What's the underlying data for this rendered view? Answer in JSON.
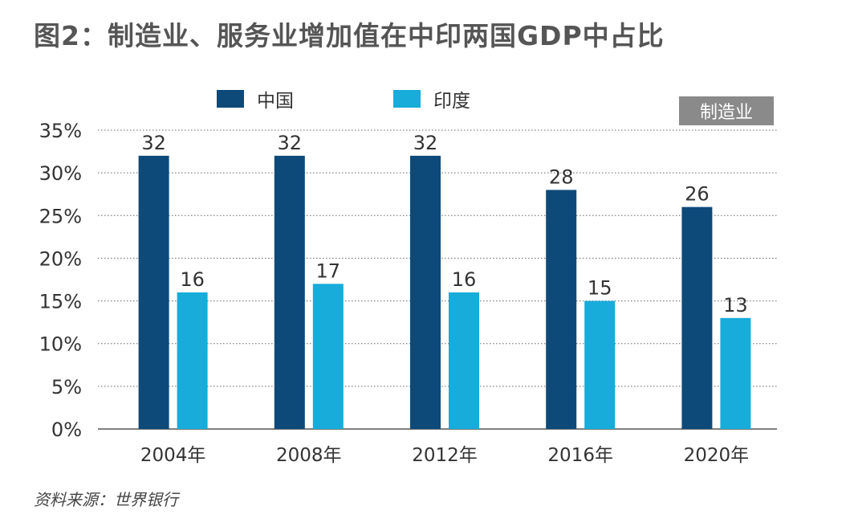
{
  "title": "图2：制造业、服务业增加值在中印两国GDP中占比",
  "badge": "制造业",
  "source": "资料来源：世界银行",
  "colors": {
    "china": "#0d4a7a",
    "india": "#17acd9",
    "grid": "#666666",
    "text": "#333333"
  },
  "chart_data": {
    "type": "bar",
    "categories": [
      "2004年",
      "2008年",
      "2012年",
      "2016年",
      "2020年"
    ],
    "series": [
      {
        "name": "中国",
        "values": [
          32,
          32,
          32,
          28,
          26
        ]
      },
      {
        "name": "印度",
        "values": [
          16,
          17,
          16,
          15,
          13
        ]
      }
    ],
    "ylim": [
      0,
      35
    ],
    "yticks": [
      0,
      5,
      10,
      15,
      20,
      25,
      30,
      35
    ],
    "ytick_labels": [
      "0%",
      "5%",
      "10%",
      "15%",
      "20%",
      "25%",
      "30%",
      "35%"
    ],
    "data_labels": true,
    "grid": true,
    "legend": "top"
  }
}
